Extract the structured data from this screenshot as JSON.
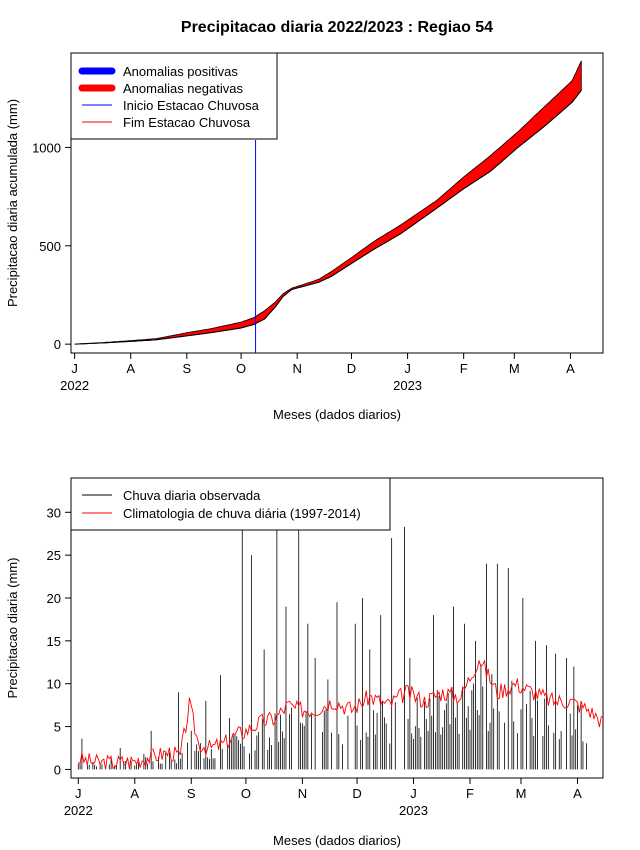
{
  "title": "Precipitacao diaria 2022/2023 : Regiao 54",
  "colors": {
    "positive_anomaly": "#0000ff",
    "negative_anomaly": "#ff0000",
    "season_start_line": "#0000ff",
    "season_end_line": "#ff0000",
    "observed_bars": "#000000",
    "climatology_line": "#ff0000"
  },
  "chart_data": [
    {
      "type": "area",
      "title": "Precipitacao diaria 2022/2023 : Regiao 54",
      "xlabel": "Meses (dados diarios)",
      "ylabel": "Precipitacao diaria acumulada (mm)",
      "x_ticks": [
        "J",
        "A",
        "S",
        "O",
        "N",
        "D",
        "J",
        "F",
        "M",
        "A"
      ],
      "x_years": [
        "2022",
        "2023"
      ],
      "y_ticks": [
        0,
        500,
        1000
      ],
      "ylim": [
        -45,
        1480
      ],
      "xlim_days": [
        -2,
        292
      ],
      "legend": [
        "Anomalias positivas",
        "Anomalias negativas",
        "Inicio Estacao Chuvosa",
        "Fim Estacao Chuvosa"
      ],
      "legend_position": "top-left",
      "season_start_day": 100,
      "observed_cumulative": {
        "x": [
          0,
          15,
          31,
          45,
          62,
          75,
          92,
          99,
          105,
          111,
          115,
          120,
          127,
          135,
          142,
          153,
          165,
          180,
          200,
          215,
          230,
          245,
          260,
          275,
          280
        ],
        "y": [
          0,
          6,
          14,
          22,
          42,
          58,
          82,
          100,
          128,
          190,
          240,
          278,
          295,
          315,
          345,
          410,
          480,
          560,
          690,
          790,
          880,
          1000,
          1110,
          1230,
          1290
        ]
      },
      "climatology_cumulative": {
        "x": [
          0,
          15,
          31,
          45,
          62,
          75,
          92,
          99,
          105,
          111,
          115,
          120,
          127,
          135,
          142,
          153,
          165,
          180,
          200,
          215,
          230,
          245,
          260,
          275,
          280
        ],
        "y": [
          0,
          8,
          18,
          28,
          58,
          78,
          112,
          135,
          170,
          215,
          255,
          285,
          305,
          330,
          370,
          440,
          520,
          605,
          730,
          850,
          960,
          1080,
          1210,
          1340,
          1440
        ]
      }
    },
    {
      "type": "bar",
      "xlabel": "Meses (dados diarios)",
      "ylabel": "Precipitacao diaria (mm)",
      "x_ticks": [
        "J",
        "A",
        "S",
        "O",
        "N",
        "D",
        "J",
        "F",
        "M",
        "A"
      ],
      "x_years": [
        "2022",
        "2023"
      ],
      "y_ticks": [
        0,
        5,
        10,
        15,
        20,
        25,
        30
      ],
      "ylim": [
        -1,
        34
      ],
      "xlim_days": [
        -4,
        288
      ],
      "legend": [
        "Chuva diaria observada",
        "Climatologia de chuva diária (1997-2014)"
      ],
      "legend_position": "top-left",
      "observed_daily_peaks": {
        "x": [
          2,
          18,
          23,
          36,
          40,
          55,
          62,
          70,
          78,
          83,
          90,
          95,
          102,
          109,
          114,
          121,
          126,
          130,
          137,
          142,
          152,
          156,
          160,
          166,
          172,
          179,
          182,
          195,
          206,
          212,
          218,
          224,
          230,
          236,
          244,
          251,
          257,
          262,
          268,
          272,
          276
        ],
        "y": [
          3.6,
          1.5,
          2.5,
          1.8,
          4.5,
          9.0,
          4.5,
          8.0,
          11.0,
          6.0,
          28.0,
          25.0,
          14.0,
          28.0,
          19.0,
          28.0,
          17.0,
          13.0,
          10.5,
          19.5,
          17.0,
          20.0,
          14.0,
          18.0,
          27.0,
          28.3,
          13.0,
          18.0,
          19.0,
          17.0,
          15.0,
          24.0,
          24.0,
          23.5,
          20.0,
          15.0,
          14.5,
          13.5,
          13.0,
          12.0,
          7.5
        ],
        "baseline_note": ""
      },
      "climatology_daily": {
        "x": [
          0,
          10,
          20,
          31,
          40,
          50,
          56,
          61,
          66,
          72,
          80,
          86,
          92,
          100,
          108,
          115,
          120,
          130,
          140,
          150,
          160,
          170,
          180,
          190,
          200,
          210,
          220,
          230,
          240,
          250,
          260,
          270,
          280,
          288
        ],
        "y": [
          1.2,
          0.8,
          0.8,
          1.0,
          1.5,
          2.0,
          1.5,
          7.5,
          3.0,
          2.5,
          3.0,
          4.0,
          4.5,
          5.5,
          6.0,
          7.5,
          7.0,
          7.0,
          8.0,
          7.0,
          8.5,
          7.5,
          9.0,
          8.0,
          9.0,
          8.5,
          13.0,
          9.0,
          10.0,
          9.0,
          8.0,
          8.0,
          7.0,
          5.5
        ]
      }
    }
  ]
}
